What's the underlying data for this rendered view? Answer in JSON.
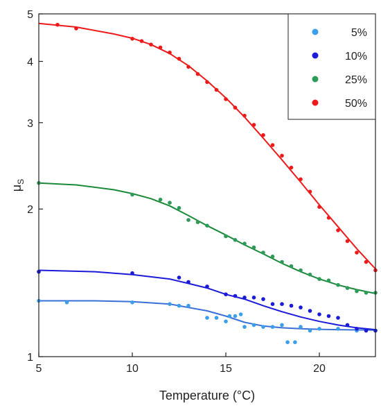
{
  "chart_data": {
    "type": "scatter",
    "xlabel": "Temperature (°C)",
    "ylabel_main": "μ",
    "ylabel_sub": "S",
    "yscale": "log",
    "xlim": [
      5,
      23
    ],
    "ylim": [
      1,
      5
    ],
    "x_ticks": [
      5,
      10,
      15,
      20
    ],
    "y_ticks": [
      1,
      2,
      3,
      4,
      5
    ],
    "legend_position": "top-right",
    "series": [
      {
        "name": "5%",
        "color": "#3a9ee8",
        "line_color": "#3a6fd8",
        "points": [
          [
            5,
            1.3
          ],
          [
            6.5,
            1.29
          ],
          [
            10,
            1.29
          ],
          [
            12,
            1.28
          ],
          [
            12.5,
            1.27
          ],
          [
            13,
            1.27
          ],
          [
            14,
            1.2
          ],
          [
            14.5,
            1.2
          ],
          [
            15,
            1.18
          ],
          [
            15.2,
            1.21
          ],
          [
            15.5,
            1.21
          ],
          [
            15.8,
            1.22
          ],
          [
            16,
            1.15
          ],
          [
            16.5,
            1.16
          ],
          [
            17,
            1.15
          ],
          [
            17.5,
            1.15
          ],
          [
            18,
            1.16
          ],
          [
            18.3,
            1.07
          ],
          [
            18.7,
            1.07
          ],
          [
            19,
            1.15
          ],
          [
            19.5,
            1.13
          ],
          [
            20,
            1.14
          ],
          [
            21,
            1.14
          ],
          [
            22,
            1.13
          ],
          [
            23,
            1.13
          ]
        ],
        "curve": [
          [
            5,
            1.3
          ],
          [
            8,
            1.3
          ],
          [
            10,
            1.295
          ],
          [
            12,
            1.28
          ],
          [
            14,
            1.24
          ],
          [
            15,
            1.21
          ],
          [
            16,
            1.175
          ],
          [
            17,
            1.155
          ],
          [
            18,
            1.145
          ],
          [
            19,
            1.14
          ],
          [
            20,
            1.137
          ],
          [
            21,
            1.135
          ],
          [
            22,
            1.134
          ],
          [
            23,
            1.133
          ]
        ]
      },
      {
        "name": "10%",
        "color": "#1a1ad8",
        "line_color": "#1a1ad8",
        "points": [
          [
            5,
            1.49
          ],
          [
            10,
            1.48
          ],
          [
            12.5,
            1.45
          ],
          [
            13,
            1.42
          ],
          [
            14,
            1.39
          ],
          [
            15,
            1.34
          ],
          [
            15.5,
            1.33
          ],
          [
            16,
            1.32
          ],
          [
            16.5,
            1.32
          ],
          [
            17,
            1.31
          ],
          [
            17.5,
            1.28
          ],
          [
            18,
            1.28
          ],
          [
            18.5,
            1.27
          ],
          [
            19,
            1.26
          ],
          [
            19.5,
            1.24
          ],
          [
            20,
            1.22
          ],
          [
            20.5,
            1.21
          ],
          [
            21,
            1.2
          ],
          [
            21.5,
            1.16
          ],
          [
            22,
            1.14
          ],
          [
            22.5,
            1.13
          ],
          [
            23,
            1.13
          ]
        ],
        "curve": [
          [
            5,
            1.5
          ],
          [
            8,
            1.49
          ],
          [
            10,
            1.47
          ],
          [
            12,
            1.44
          ],
          [
            13,
            1.41
          ],
          [
            14,
            1.38
          ],
          [
            15,
            1.34
          ],
          [
            16,
            1.31
          ],
          [
            17,
            1.27
          ],
          [
            18,
            1.235
          ],
          [
            19,
            1.205
          ],
          [
            20,
            1.18
          ],
          [
            21,
            1.16
          ],
          [
            22,
            1.145
          ],
          [
            23,
            1.135
          ]
        ]
      },
      {
        "name": "25%",
        "color": "#2e9a5a",
        "line_color": "#1a8a3a",
        "points": [
          [
            5,
            2.26
          ],
          [
            10,
            2.14
          ],
          [
            11.5,
            2.09
          ],
          [
            12,
            2.06
          ],
          [
            12.5,
            2.01
          ],
          [
            13,
            1.9
          ],
          [
            13.5,
            1.88
          ],
          [
            14,
            1.85
          ],
          [
            15,
            1.76
          ],
          [
            15.5,
            1.73
          ],
          [
            16,
            1.7
          ],
          [
            16.5,
            1.67
          ],
          [
            17,
            1.63
          ],
          [
            17.5,
            1.6
          ],
          [
            18,
            1.56
          ],
          [
            18.5,
            1.53
          ],
          [
            19,
            1.5
          ],
          [
            19.5,
            1.47
          ],
          [
            20,
            1.44
          ],
          [
            20.5,
            1.43
          ],
          [
            21,
            1.4
          ],
          [
            21.5,
            1.38
          ],
          [
            22,
            1.36
          ],
          [
            22.5,
            1.35
          ],
          [
            23,
            1.35
          ]
        ],
        "curve": [
          [
            5,
            2.26
          ],
          [
            7,
            2.24
          ],
          [
            9,
            2.19
          ],
          [
            10,
            2.15
          ],
          [
            11,
            2.1
          ],
          [
            12,
            2.03
          ],
          [
            13,
            1.94
          ],
          [
            14,
            1.85
          ],
          [
            15,
            1.77
          ],
          [
            16,
            1.69
          ],
          [
            17,
            1.62
          ],
          [
            18,
            1.55
          ],
          [
            19,
            1.49
          ],
          [
            20,
            1.44
          ],
          [
            21,
            1.4
          ],
          [
            22,
            1.37
          ],
          [
            23,
            1.345
          ]
        ]
      },
      {
        "name": "50%",
        "color": "#ee1a1a",
        "line_color": "#ee1a1a",
        "points": [
          [
            6,
            4.75
          ],
          [
            7,
            4.67
          ],
          [
            10,
            4.45
          ],
          [
            10.5,
            4.4
          ],
          [
            11,
            4.33
          ],
          [
            11.5,
            4.27
          ],
          [
            12,
            4.17
          ],
          [
            12.5,
            4.05
          ],
          [
            13,
            3.9
          ],
          [
            13.5,
            3.77
          ],
          [
            14,
            3.63
          ],
          [
            14.5,
            3.5
          ],
          [
            15,
            3.35
          ],
          [
            15.5,
            3.22
          ],
          [
            16,
            3.1
          ],
          [
            16.5,
            2.97
          ],
          [
            17,
            2.83
          ],
          [
            17.5,
            2.7
          ],
          [
            18,
            2.57
          ],
          [
            18.5,
            2.43
          ],
          [
            19,
            2.3
          ],
          [
            19.5,
            2.17
          ],
          [
            20,
            2.02
          ],
          [
            20.5,
            1.92
          ],
          [
            21,
            1.81
          ],
          [
            21.5,
            1.72
          ],
          [
            22,
            1.63
          ],
          [
            22.5,
            1.56
          ],
          [
            23,
            1.5
          ]
        ],
        "curve": [
          [
            5,
            4.78
          ],
          [
            7,
            4.7
          ],
          [
            9,
            4.55
          ],
          [
            10,
            4.46
          ],
          [
            11,
            4.33
          ],
          [
            12,
            4.15
          ],
          [
            13,
            3.92
          ],
          [
            14,
            3.65
          ],
          [
            15,
            3.37
          ],
          [
            16,
            3.08
          ],
          [
            17,
            2.79
          ],
          [
            18,
            2.52
          ],
          [
            19,
            2.27
          ],
          [
            20,
            2.04
          ],
          [
            21,
            1.84
          ],
          [
            22,
            1.66
          ],
          [
            23,
            1.51
          ]
        ]
      }
    ]
  }
}
